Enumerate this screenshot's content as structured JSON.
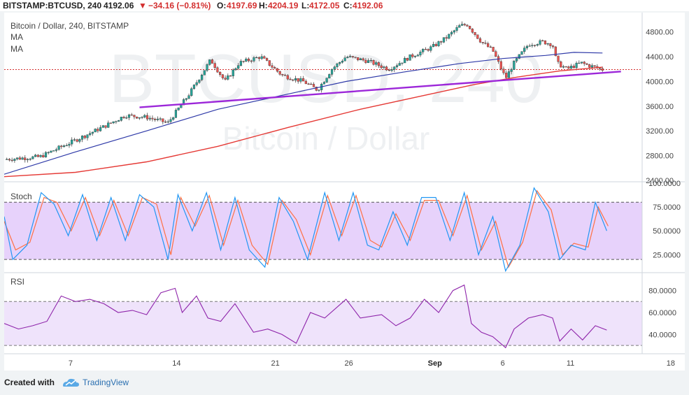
{
  "header": {
    "symbol": "BITSTAMP:BTCUSD, 240",
    "last": "4192.06",
    "change_arrow": "▼",
    "change": "−34.16 (−0.81%)",
    "open_label": "O:",
    "open": "4197.69",
    "high_label": "H:",
    "high": "4204.19",
    "low_label": "L:",
    "low": "4172.05",
    "close_label": "C:",
    "close": "4192.06"
  },
  "legend": {
    "title": "Bitcoin / Dollar, 240, BITSTAMP",
    "ma1": "MA",
    "ma2": "MA"
  },
  "watermark": {
    "ticker": "BTCUSD, 240",
    "name": "Bitcoin / Dollar"
  },
  "footer": {
    "created_with": "Created with",
    "brand": "TradingView"
  },
  "colors": {
    "up": "#26a69a",
    "down": "#ef5350",
    "ma_fast": "#2f3aa8",
    "ma_slow": "#e53935",
    "trendline": "#9c27d9",
    "stoch_k": "#2196f3",
    "stoch_d": "#ff7043",
    "stoch_band": "#e7d2fb",
    "rsi_line": "#8e24aa",
    "rsi_band": "#efe3fb"
  },
  "chart_data": [
    {
      "type": "candlestick",
      "name": "Bitcoin / Dollar, 240, BITSTAMP",
      "x_ticks": [
        "7",
        "14",
        "21",
        "26",
        "Sep",
        "6",
        "11",
        "18"
      ],
      "y_ticks": [
        "4800.00",
        "4400.00",
        "4000.00",
        "3600.00",
        "3200.00",
        "2800.00",
        "2400.00"
      ],
      "ylim": [
        2400,
        5000
      ],
      "last_price": 4192.06,
      "key_prices": [
        {
          "x": 0,
          "y": 2740
        },
        {
          "x": 2.5,
          "y": 2780
        },
        {
          "x": 5,
          "y": 3050
        },
        {
          "x": 7,
          "y": 3270
        },
        {
          "x": 8.5,
          "y": 3450
        },
        {
          "x": 10,
          "y": 3420
        },
        {
          "x": 11.5,
          "y": 3330
        },
        {
          "x": 13,
          "y": 3800
        },
        {
          "x": 14.5,
          "y": 4350
        },
        {
          "x": 15.5,
          "y": 4000
        },
        {
          "x": 16.5,
          "y": 4300
        },
        {
          "x": 18,
          "y": 4400
        },
        {
          "x": 19.5,
          "y": 4100
        },
        {
          "x": 21,
          "y": 4000
        },
        {
          "x": 22,
          "y": 3860
        },
        {
          "x": 23,
          "y": 4200
        },
        {
          "x": 24,
          "y": 4400
        },
        {
          "x": 25.5,
          "y": 4330
        },
        {
          "x": 27,
          "y": 4200
        },
        {
          "x": 28.5,
          "y": 4400
        },
        {
          "x": 30,
          "y": 4550
        },
        {
          "x": 31,
          "y": 4700
        },
        {
          "x": 32,
          "y": 4900
        },
        {
          "x": 32.5,
          "y": 4920
        },
        {
          "x": 33.5,
          "y": 4640
        },
        {
          "x": 34.3,
          "y": 4500
        },
        {
          "x": 35.2,
          "y": 4050
        },
        {
          "x": 35.8,
          "y": 4300
        },
        {
          "x": 36.8,
          "y": 4600
        },
        {
          "x": 37.8,
          "y": 4640
        },
        {
          "x": 38.5,
          "y": 4600
        },
        {
          "x": 38.8,
          "y": 4300
        },
        {
          "x": 39.5,
          "y": 4200
        },
        {
          "x": 40.5,
          "y": 4300
        },
        {
          "x": 41,
          "y": 4260
        },
        {
          "x": 42,
          "y": 4192
        }
      ],
      "ma_fast": [
        {
          "x": 0,
          "y": 2500
        },
        {
          "x": 5,
          "y": 2860
        },
        {
          "x": 10,
          "y": 3200
        },
        {
          "x": 15,
          "y": 3550
        },
        {
          "x": 20,
          "y": 3800
        },
        {
          "x": 24,
          "y": 4000
        },
        {
          "x": 28,
          "y": 4150
        },
        {
          "x": 32,
          "y": 4290
        },
        {
          "x": 35,
          "y": 4370
        },
        {
          "x": 38,
          "y": 4420
        },
        {
          "x": 40,
          "y": 4470
        },
        {
          "x": 42,
          "y": 4460
        }
      ],
      "ma_slow": [
        {
          "x": 0,
          "y": 2460
        },
        {
          "x": 5,
          "y": 2530
        },
        {
          "x": 10,
          "y": 2700
        },
        {
          "x": 15,
          "y": 2950
        },
        {
          "x": 20,
          "y": 3260
        },
        {
          "x": 25,
          "y": 3550
        },
        {
          "x": 30,
          "y": 3800
        },
        {
          "x": 33,
          "y": 3950
        },
        {
          "x": 36,
          "y": 4070
        },
        {
          "x": 39,
          "y": 4170
        },
        {
          "x": 42,
          "y": 4230
        }
      ],
      "trendline": [
        {
          "x": 9.5,
          "y": 3580
        },
        {
          "x": 43.3,
          "y": 4160
        }
      ]
    },
    {
      "type": "line",
      "name": "Stoch",
      "y_ticks": [
        "100.0000",
        "75.0000",
        "50.0000",
        "25.0000"
      ],
      "ylim": [
        15,
        100
      ],
      "band": [
        20,
        80
      ],
      "k": [
        {
          "x": 0,
          "y": 65
        },
        {
          "x": 0.6,
          "y": 20
        },
        {
          "x": 1.6,
          "y": 35
        },
        {
          "x": 2.6,
          "y": 90
        },
        {
          "x": 3.5,
          "y": 78
        },
        {
          "x": 4.5,
          "y": 45
        },
        {
          "x": 5.5,
          "y": 88
        },
        {
          "x": 6.5,
          "y": 40
        },
        {
          "x": 7.5,
          "y": 85
        },
        {
          "x": 8.5,
          "y": 40
        },
        {
          "x": 9.5,
          "y": 88
        },
        {
          "x": 10.5,
          "y": 75
        },
        {
          "x": 11.5,
          "y": 20
        },
        {
          "x": 12.2,
          "y": 88
        },
        {
          "x": 13.2,
          "y": 50
        },
        {
          "x": 14.2,
          "y": 90
        },
        {
          "x": 15.2,
          "y": 30
        },
        {
          "x": 16.2,
          "y": 85
        },
        {
          "x": 17.2,
          "y": 30
        },
        {
          "x": 18.3,
          "y": 12
        },
        {
          "x": 19.3,
          "y": 85
        },
        {
          "x": 20.3,
          "y": 60
        },
        {
          "x": 21.3,
          "y": 20
        },
        {
          "x": 22.5,
          "y": 90
        },
        {
          "x": 23.5,
          "y": 40
        },
        {
          "x": 24.5,
          "y": 90
        },
        {
          "x": 25.5,
          "y": 35
        },
        {
          "x": 26.3,
          "y": 30
        },
        {
          "x": 27.3,
          "y": 70
        },
        {
          "x": 28.3,
          "y": 35
        },
        {
          "x": 29.3,
          "y": 85
        },
        {
          "x": 30.3,
          "y": 85
        },
        {
          "x": 31.3,
          "y": 40
        },
        {
          "x": 32.3,
          "y": 90
        },
        {
          "x": 33.3,
          "y": 25
        },
        {
          "x": 34.3,
          "y": 65
        },
        {
          "x": 35.2,
          "y": 8
        },
        {
          "x": 36.2,
          "y": 35
        },
        {
          "x": 37.2,
          "y": 95
        },
        {
          "x": 38.2,
          "y": 70
        },
        {
          "x": 39,
          "y": 20
        },
        {
          "x": 39.8,
          "y": 35
        },
        {
          "x": 40.8,
          "y": 30
        },
        {
          "x": 41.5,
          "y": 80
        },
        {
          "x": 42.3,
          "y": 50
        }
      ],
      "d": [
        {
          "x": 0,
          "y": 60
        },
        {
          "x": 0.8,
          "y": 30
        },
        {
          "x": 1.8,
          "y": 38
        },
        {
          "x": 2.8,
          "y": 85
        },
        {
          "x": 3.7,
          "y": 80
        },
        {
          "x": 4.7,
          "y": 50
        },
        {
          "x": 5.7,
          "y": 85
        },
        {
          "x": 6.7,
          "y": 45
        },
        {
          "x": 7.7,
          "y": 82
        },
        {
          "x": 8.7,
          "y": 45
        },
        {
          "x": 9.7,
          "y": 85
        },
        {
          "x": 10.7,
          "y": 78
        },
        {
          "x": 11.7,
          "y": 25
        },
        {
          "x": 12.4,
          "y": 85
        },
        {
          "x": 13.4,
          "y": 55
        },
        {
          "x": 14.4,
          "y": 87
        },
        {
          "x": 15.4,
          "y": 35
        },
        {
          "x": 16.4,
          "y": 82
        },
        {
          "x": 17.4,
          "y": 35
        },
        {
          "x": 18.5,
          "y": 15
        },
        {
          "x": 19.5,
          "y": 82
        },
        {
          "x": 20.5,
          "y": 62
        },
        {
          "x": 21.5,
          "y": 25
        },
        {
          "x": 22.7,
          "y": 87
        },
        {
          "x": 23.7,
          "y": 45
        },
        {
          "x": 24.7,
          "y": 87
        },
        {
          "x": 25.7,
          "y": 40
        },
        {
          "x": 26.5,
          "y": 33
        },
        {
          "x": 27.5,
          "y": 68
        },
        {
          "x": 28.5,
          "y": 40
        },
        {
          "x": 29.5,
          "y": 82
        },
        {
          "x": 30.5,
          "y": 82
        },
        {
          "x": 31.5,
          "y": 45
        },
        {
          "x": 32.5,
          "y": 87
        },
        {
          "x": 33.5,
          "y": 30
        },
        {
          "x": 34.5,
          "y": 60
        },
        {
          "x": 35.4,
          "y": 12
        },
        {
          "x": 36.4,
          "y": 38
        },
        {
          "x": 37.4,
          "y": 92
        },
        {
          "x": 38.4,
          "y": 72
        },
        {
          "x": 39.2,
          "y": 25
        },
        {
          "x": 40,
          "y": 37
        },
        {
          "x": 41,
          "y": 33
        },
        {
          "x": 41.7,
          "y": 75
        },
        {
          "x": 42.4,
          "y": 55
        }
      ]
    },
    {
      "type": "line",
      "name": "RSI",
      "y_ticks": [
        "80.0000",
        "60.0000",
        "40.0000"
      ],
      "ylim": [
        25,
        95
      ],
      "band": [
        30,
        70
      ],
      "rsi": [
        {
          "x": 0,
          "y": 50
        },
        {
          "x": 1,
          "y": 45
        },
        {
          "x": 2,
          "y": 48
        },
        {
          "x": 3,
          "y": 52
        },
        {
          "x": 4,
          "y": 75
        },
        {
          "x": 5,
          "y": 70
        },
        {
          "x": 6,
          "y": 72
        },
        {
          "x": 7,
          "y": 68
        },
        {
          "x": 8,
          "y": 60
        },
        {
          "x": 9,
          "y": 62
        },
        {
          "x": 10,
          "y": 58
        },
        {
          "x": 11,
          "y": 78
        },
        {
          "x": 12,
          "y": 82
        },
        {
          "x": 12.5,
          "y": 60
        },
        {
          "x": 13.5,
          "y": 75
        },
        {
          "x": 14.3,
          "y": 55
        },
        {
          "x": 15.2,
          "y": 52
        },
        {
          "x": 16.2,
          "y": 68
        },
        {
          "x": 17.5,
          "y": 42
        },
        {
          "x": 18.5,
          "y": 45
        },
        {
          "x": 19.5,
          "y": 40
        },
        {
          "x": 20.5,
          "y": 32
        },
        {
          "x": 21.5,
          "y": 60
        },
        {
          "x": 22.5,
          "y": 55
        },
        {
          "x": 24,
          "y": 72
        },
        {
          "x": 25,
          "y": 55
        },
        {
          "x": 26.5,
          "y": 58
        },
        {
          "x": 27.5,
          "y": 48
        },
        {
          "x": 28.5,
          "y": 55
        },
        {
          "x": 29.5,
          "y": 72
        },
        {
          "x": 30.5,
          "y": 60
        },
        {
          "x": 31.5,
          "y": 80
        },
        {
          "x": 32.3,
          "y": 85
        },
        {
          "x": 32.8,
          "y": 50
        },
        {
          "x": 33.5,
          "y": 42
        },
        {
          "x": 34.3,
          "y": 38
        },
        {
          "x": 35.2,
          "y": 28
        },
        {
          "x": 35.8,
          "y": 45
        },
        {
          "x": 36.8,
          "y": 55
        },
        {
          "x": 37.8,
          "y": 58
        },
        {
          "x": 38.5,
          "y": 55
        },
        {
          "x": 39,
          "y": 34
        },
        {
          "x": 39.8,
          "y": 45
        },
        {
          "x": 40.6,
          "y": 35
        },
        {
          "x": 41.5,
          "y": 48
        },
        {
          "x": 42.3,
          "y": 44
        }
      ]
    }
  ]
}
